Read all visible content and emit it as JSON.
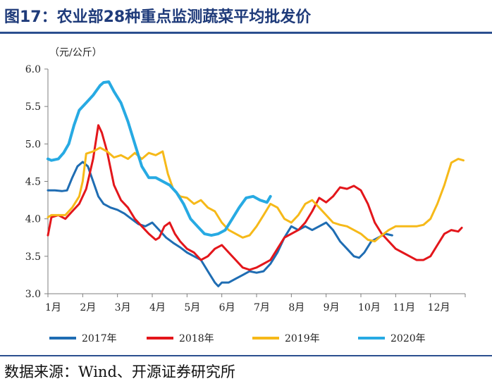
{
  "figure": {
    "title": "图17：农业部28种重点监测蔬菜平均批发价",
    "source": "数据来源：Wind、开源证券研究所"
  },
  "colors": {
    "s2017": "#1f6db3",
    "s2018": "#e3161b",
    "s2019": "#f6b919",
    "s2020": "#27aae3",
    "title": "#1f3b7a"
  },
  "chart_data": {
    "type": "line",
    "title": "农业部28种重点监测蔬菜平均批发价",
    "ylabel": "（元/公斤）",
    "xlabel": "",
    "ylim": [
      3.0,
      6.0
    ],
    "yticks": [
      "3.0",
      "3.5",
      "4.0",
      "4.5",
      "5.0",
      "5.5",
      "6.0"
    ],
    "x_unit": "month (1 = start of January, 13 = end of December)",
    "xlim": [
      1,
      13
    ],
    "categories": [
      "1月",
      "2月",
      "3月",
      "4月",
      "5月",
      "6月",
      "7月",
      "8月",
      "9月",
      "10月",
      "11月",
      "12月"
    ],
    "series": [
      {
        "name": "2017年",
        "x": [
          1.0,
          1.2,
          1.4,
          1.55,
          1.7,
          1.85,
          2.0,
          2.15,
          2.3,
          2.45,
          2.6,
          2.8,
          3.0,
          3.2,
          3.4,
          3.6,
          3.8,
          4.0,
          4.2,
          4.4,
          4.6,
          4.8,
          5.0,
          5.2,
          5.4,
          5.6,
          5.8,
          5.9,
          6.0,
          6.2,
          6.4,
          6.6,
          6.8,
          7.0,
          7.2,
          7.4,
          7.6,
          7.8,
          8.0,
          8.2,
          8.4,
          8.6,
          8.8,
          9.0,
          9.2,
          9.4,
          9.6,
          9.8,
          9.95,
          10.1,
          10.3,
          10.5,
          10.7,
          10.9
        ],
        "values": [
          4.38,
          4.38,
          4.37,
          4.38,
          4.55,
          4.7,
          4.76,
          4.7,
          4.5,
          4.3,
          4.2,
          4.15,
          4.12,
          4.07,
          4.0,
          3.93,
          3.9,
          3.95,
          3.85,
          3.75,
          3.68,
          3.62,
          3.55,
          3.5,
          3.45,
          3.3,
          3.15,
          3.1,
          3.15,
          3.15,
          3.2,
          3.25,
          3.3,
          3.28,
          3.3,
          3.4,
          3.55,
          3.75,
          3.9,
          3.85,
          3.9,
          3.85,
          3.9,
          3.95,
          3.85,
          3.7,
          3.6,
          3.5,
          3.48,
          3.55,
          3.7,
          3.75,
          3.8,
          3.78
        ]
      },
      {
        "name": "2018年",
        "x": [
          1.0,
          1.1,
          1.3,
          1.5,
          1.7,
          1.9,
          2.1,
          2.3,
          2.45,
          2.55,
          2.7,
          2.9,
          3.1,
          3.3,
          3.5,
          3.7,
          3.9,
          4.1,
          4.2,
          4.35,
          4.5,
          4.65,
          4.8,
          5.0,
          5.2,
          5.4,
          5.6,
          5.8,
          6.0,
          6.2,
          6.4,
          6.6,
          6.8,
          7.0,
          7.2,
          7.4,
          7.6,
          7.8,
          8.0,
          8.2,
          8.4,
          8.6,
          8.8,
          9.0,
          9.2,
          9.4,
          9.6,
          9.8,
          10.0,
          10.2,
          10.4,
          10.6,
          10.8,
          11.0,
          11.2,
          11.4,
          11.6,
          11.8,
          12.0,
          12.2,
          12.4,
          12.6,
          12.8,
          12.9
        ],
        "values": [
          3.78,
          4.02,
          4.05,
          4.0,
          4.1,
          4.2,
          4.4,
          4.8,
          5.25,
          5.15,
          4.9,
          4.45,
          4.25,
          4.15,
          4.0,
          3.9,
          3.8,
          3.72,
          3.75,
          3.9,
          3.95,
          3.8,
          3.7,
          3.6,
          3.55,
          3.45,
          3.5,
          3.6,
          3.65,
          3.55,
          3.45,
          3.35,
          3.32,
          3.35,
          3.4,
          3.45,
          3.6,
          3.75,
          3.8,
          3.85,
          3.95,
          4.1,
          4.28,
          4.22,
          4.3,
          4.42,
          4.4,
          4.44,
          4.38,
          4.2,
          3.95,
          3.8,
          3.7,
          3.6,
          3.55,
          3.5,
          3.45,
          3.45,
          3.5,
          3.65,
          3.8,
          3.85,
          3.83,
          3.88
        ]
      },
      {
        "name": "2019年",
        "x": [
          1.0,
          1.1,
          1.3,
          1.5,
          1.7,
          1.9,
          2.0,
          2.1,
          2.3,
          2.5,
          2.7,
          2.9,
          3.1,
          3.3,
          3.5,
          3.7,
          3.9,
          4.1,
          4.3,
          4.45,
          4.6,
          4.8,
          5.0,
          5.2,
          5.4,
          5.6,
          5.8,
          6.0,
          6.2,
          6.4,
          6.6,
          6.8,
          7.0,
          7.2,
          7.4,
          7.6,
          7.8,
          8.0,
          8.2,
          8.4,
          8.6,
          8.8,
          9.0,
          9.2,
          9.4,
          9.6,
          9.8,
          10.0,
          10.2,
          10.4,
          10.6,
          10.8,
          11.0,
          11.2,
          11.4,
          11.6,
          11.8,
          12.0,
          12.2,
          12.4,
          12.6,
          12.8,
          12.95
        ],
        "values": [
          4.02,
          4.05,
          4.05,
          4.05,
          4.15,
          4.3,
          4.5,
          4.87,
          4.9,
          4.95,
          4.9,
          4.82,
          4.85,
          4.8,
          4.88,
          4.8,
          4.88,
          4.85,
          4.9,
          4.6,
          4.4,
          4.3,
          4.28,
          4.2,
          4.25,
          4.15,
          4.1,
          3.95,
          3.85,
          3.8,
          3.75,
          3.78,
          3.9,
          4.05,
          4.2,
          4.15,
          4.0,
          3.95,
          4.05,
          4.2,
          4.25,
          4.15,
          4.05,
          3.95,
          3.92,
          3.9,
          3.85,
          3.8,
          3.72,
          3.7,
          3.78,
          3.85,
          3.9,
          3.9,
          3.9,
          3.9,
          3.92,
          4.0,
          4.2,
          4.45,
          4.75,
          4.8,
          4.78
        ]
      },
      {
        "name": "2020年",
        "x": [
          1.0,
          1.1,
          1.3,
          1.45,
          1.6,
          1.75,
          1.9,
          2.1,
          2.3,
          2.5,
          2.6,
          2.75,
          2.9,
          3.1,
          3.3,
          3.5,
          3.7,
          3.9,
          4.1,
          4.3,
          4.5,
          4.7,
          4.9,
          5.1,
          5.3,
          5.5,
          5.7,
          5.9,
          6.1,
          6.3,
          6.5,
          6.7,
          6.9,
          7.1,
          7.3,
          7.4
        ],
        "values": [
          4.8,
          4.78,
          4.8,
          4.88,
          5.0,
          5.25,
          5.45,
          5.55,
          5.65,
          5.78,
          5.82,
          5.83,
          5.7,
          5.55,
          5.3,
          5.0,
          4.7,
          4.55,
          4.55,
          4.5,
          4.45,
          4.35,
          4.2,
          4.0,
          3.9,
          3.8,
          3.78,
          3.8,
          3.85,
          4.0,
          4.15,
          4.28,
          4.3,
          4.25,
          4.22,
          4.3
        ]
      }
    ],
    "legend": [
      "2017年",
      "2018年",
      "2019年",
      "2020年"
    ],
    "legend_position": "bottom",
    "grid": false
  }
}
